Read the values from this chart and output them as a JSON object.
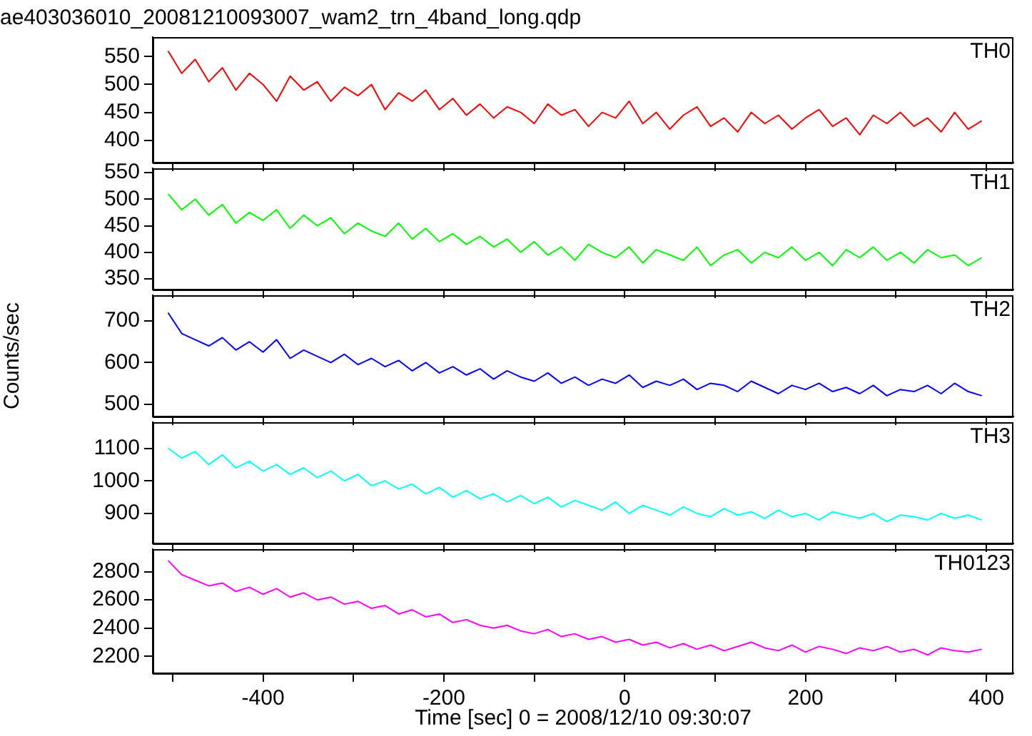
{
  "chart_data": [
    {
      "type": "line",
      "title": "ae403036010_20081210093007_wam2_trn_4band_long.qdp",
      "x": [
        -505,
        -490,
        -475,
        -460,
        -445,
        -430,
        -415,
        -400,
        -385,
        -370,
        -355,
        -340,
        -325,
        -310,
        -295,
        -280,
        -265,
        -250,
        -235,
        -220,
        -205,
        -190,
        -175,
        -160,
        -145,
        -130,
        -115,
        -100,
        -85,
        -70,
        -55,
        -40,
        -25,
        -10,
        5,
        20,
        35,
        50,
        65,
        80,
        95,
        110,
        125,
        140,
        155,
        170,
        185,
        200,
        215,
        230,
        245,
        260,
        275,
        290,
        305,
        320,
        335,
        350,
        365,
        380,
        395
      ],
      "series": [
        {
          "name": "TH0",
          "color": "#ff0000",
          "values": [
            560,
            520,
            545,
            505,
            530,
            490,
            520,
            500,
            470,
            515,
            490,
            505,
            470,
            495,
            480,
            500,
            455,
            485,
            470,
            490,
            455,
            475,
            445,
            465,
            440,
            460,
            450,
            430,
            465,
            445,
            455,
            425,
            450,
            440,
            470,
            430,
            450,
            420,
            445,
            460,
            425,
            440,
            415,
            450,
            430,
            445,
            420,
            440,
            455,
            425,
            440,
            410,
            445,
            430,
            450,
            425,
            440,
            415,
            450,
            420,
            435
          ]
        }
      ],
      "xlim": [
        -522,
        430
      ],
      "xticks": [
        {
          "value": -500,
          "label": null
        },
        -400,
        {
          "value": -300,
          "label": null
        },
        -200,
        {
          "value": -100,
          "label": null
        },
        0,
        {
          "value": 100,
          "label": null
        },
        200,
        {
          "value": 300,
          "label": null
        },
        400
      ],
      "ylim": [
        360,
        585
      ],
      "yticks": [
        400,
        450,
        500,
        550
      ],
      "tick_labels": "y",
      "grid": false,
      "legend": false,
      "marker": "none"
    },
    {
      "type": "line",
      "x": [
        -505,
        -490,
        -475,
        -460,
        -445,
        -430,
        -415,
        -400,
        -385,
        -370,
        -355,
        -340,
        -325,
        -310,
        -295,
        -280,
        -265,
        -250,
        -235,
        -220,
        -205,
        -190,
        -175,
        -160,
        -145,
        -130,
        -115,
        -100,
        -85,
        -70,
        -55,
        -40,
        -25,
        -10,
        5,
        20,
        35,
        50,
        65,
        80,
        95,
        110,
        125,
        140,
        155,
        170,
        185,
        200,
        215,
        230,
        245,
        260,
        275,
        290,
        305,
        320,
        335,
        350,
        365,
        380,
        395
      ],
      "series": [
        {
          "name": "TH1",
          "color": "#00ff00",
          "values": [
            510,
            480,
            500,
            470,
            490,
            455,
            475,
            460,
            480,
            445,
            470,
            450,
            465,
            435,
            455,
            440,
            430,
            455,
            425,
            445,
            420,
            435,
            415,
            430,
            410,
            425,
            400,
            420,
            395,
            410,
            385,
            415,
            400,
            390,
            410,
            380,
            405,
            395,
            385,
            410,
            375,
            395,
            405,
            380,
            400,
            390,
            410,
            385,
            400,
            375,
            405,
            390,
            410,
            385,
            400,
            380,
            405,
            390,
            395,
            375,
            390
          ]
        }
      ],
      "xlim": [
        -522,
        430
      ],
      "xticks": [
        {
          "value": -500,
          "label": null
        },
        -400,
        {
          "value": -300,
          "label": null
        },
        -200,
        {
          "value": -100,
          "label": null
        },
        0,
        {
          "value": 100,
          "label": null
        },
        200,
        {
          "value": 300,
          "label": null
        },
        400
      ],
      "ylim": [
        330,
        558
      ],
      "yticks": [
        350,
        400,
        450,
        500,
        550
      ],
      "tick_labels": "y",
      "grid": false,
      "legend": false,
      "marker": "none"
    },
    {
      "type": "line",
      "ylabel": "Counts/sec",
      "x": [
        -505,
        -490,
        -475,
        -460,
        -445,
        -430,
        -415,
        -400,
        -385,
        -370,
        -355,
        -340,
        -325,
        -310,
        -295,
        -280,
        -265,
        -250,
        -235,
        -220,
        -205,
        -190,
        -175,
        -160,
        -145,
        -130,
        -115,
        -100,
        -85,
        -70,
        -55,
        -40,
        -25,
        -10,
        5,
        20,
        35,
        50,
        65,
        80,
        95,
        110,
        125,
        140,
        155,
        170,
        185,
        200,
        215,
        230,
        245,
        260,
        275,
        290,
        305,
        320,
        335,
        350,
        365,
        380,
        395
      ],
      "series": [
        {
          "name": "TH2",
          "color": "#0000ff",
          "values": [
            720,
            670,
            655,
            640,
            660,
            630,
            650,
            625,
            655,
            610,
            630,
            615,
            600,
            620,
            595,
            610,
            590,
            605,
            580,
            600,
            575,
            590,
            570,
            585,
            560,
            580,
            565,
            555,
            575,
            550,
            565,
            545,
            560,
            550,
            570,
            540,
            555,
            545,
            560,
            535,
            550,
            545,
            530,
            555,
            540,
            525,
            545,
            535,
            550,
            530,
            540,
            525,
            545,
            520,
            535,
            530,
            545,
            525,
            550,
            530,
            520
          ]
        }
      ],
      "xlim": [
        -522,
        430
      ],
      "xticks": [
        {
          "value": -500,
          "label": null
        },
        -400,
        {
          "value": -300,
          "label": null
        },
        -200,
        {
          "value": -100,
          "label": null
        },
        0,
        {
          "value": 100,
          "label": null
        },
        200,
        {
          "value": 300,
          "label": null
        },
        400
      ],
      "ylim": [
        470,
        762
      ],
      "yticks": [
        500,
        600,
        700
      ],
      "tick_labels": "y",
      "grid": false,
      "legend": false,
      "marker": "none"
    },
    {
      "type": "line",
      "x": [
        -505,
        -490,
        -475,
        -460,
        -445,
        -430,
        -415,
        -400,
        -385,
        -370,
        -355,
        -340,
        -325,
        -310,
        -295,
        -280,
        -265,
        -250,
        -235,
        -220,
        -205,
        -190,
        -175,
        -160,
        -145,
        -130,
        -115,
        -100,
        -85,
        -70,
        -55,
        -40,
        -25,
        -10,
        5,
        20,
        35,
        50,
        65,
        80,
        95,
        110,
        125,
        140,
        155,
        170,
        185,
        200,
        215,
        230,
        245,
        260,
        275,
        290,
        305,
        320,
        335,
        350,
        365,
        380,
        395
      ],
      "series": [
        {
          "name": "TH3",
          "color": "#00ffff",
          "values": [
            1100,
            1070,
            1090,
            1050,
            1080,
            1040,
            1060,
            1030,
            1050,
            1020,
            1040,
            1010,
            1030,
            1000,
            1020,
            985,
            1000,
            975,
            990,
            960,
            980,
            950,
            970,
            945,
            960,
            935,
            955,
            930,
            950,
            920,
            940,
            925,
            910,
            935,
            900,
            925,
            910,
            895,
            920,
            900,
            890,
            915,
            895,
            905,
            885,
            910,
            890,
            900,
            880,
            905,
            895,
            885,
            900,
            875,
            895,
            890,
            880,
            900,
            885,
            895,
            880
          ]
        }
      ],
      "xlim": [
        -522,
        430
      ],
      "xticks": [
        {
          "value": -500,
          "label": null
        },
        -400,
        {
          "value": -300,
          "label": null
        },
        -200,
        {
          "value": -100,
          "label": null
        },
        0,
        {
          "value": 100,
          "label": null
        },
        200,
        {
          "value": 300,
          "label": null
        },
        400
      ],
      "ylim": [
        808,
        1180
      ],
      "yticks": [
        900,
        1000,
        1100
      ],
      "tick_labels": "y",
      "grid": false,
      "legend": false,
      "marker": "none"
    },
    {
      "type": "line",
      "xlabel": "Time [sec] 0 = 2008/12/10 09:30:07",
      "x": [
        -505,
        -490,
        -475,
        -460,
        -445,
        -430,
        -415,
        -400,
        -385,
        -370,
        -355,
        -340,
        -325,
        -310,
        -295,
        -280,
        -265,
        -250,
        -235,
        -220,
        -205,
        -190,
        -175,
        -160,
        -145,
        -130,
        -115,
        -100,
        -85,
        -70,
        -55,
        -40,
        -25,
        -10,
        5,
        20,
        35,
        50,
        65,
        80,
        95,
        110,
        125,
        140,
        155,
        170,
        185,
        200,
        215,
        230,
        245,
        260,
        275,
        290,
        305,
        320,
        335,
        350,
        365,
        380,
        395
      ],
      "series": [
        {
          "name": "TH0123",
          "color": "#ff00ff",
          "values": [
            2880,
            2780,
            2740,
            2700,
            2720,
            2660,
            2690,
            2640,
            2680,
            2620,
            2650,
            2600,
            2620,
            2570,
            2590,
            2540,
            2560,
            2500,
            2530,
            2480,
            2500,
            2440,
            2460,
            2420,
            2400,
            2420,
            2380,
            2360,
            2390,
            2340,
            2360,
            2320,
            2340,
            2300,
            2320,
            2280,
            2300,
            2260,
            2290,
            2250,
            2280,
            2240,
            2270,
            2300,
            2260,
            2240,
            2280,
            2230,
            2270,
            2250,
            2220,
            2260,
            2240,
            2270,
            2230,
            2250,
            2210,
            2260,
            2240,
            2230,
            2250
          ]
        }
      ],
      "xlim": [
        -522,
        430
      ],
      "xticks": [
        {
          "value": -500,
          "label": null
        },
        -400,
        {
          "value": -300,
          "label": null
        },
        -200,
        {
          "value": -100,
          "label": null
        },
        0,
        {
          "value": 100,
          "label": null
        },
        200,
        {
          "value": 300,
          "label": null
        },
        400
      ],
      "ylim": [
        2080,
        2960
      ],
      "yticks": [
        2200,
        2400,
        2600,
        2800
      ],
      "grid": false,
      "legend": false,
      "marker": "none"
    }
  ]
}
